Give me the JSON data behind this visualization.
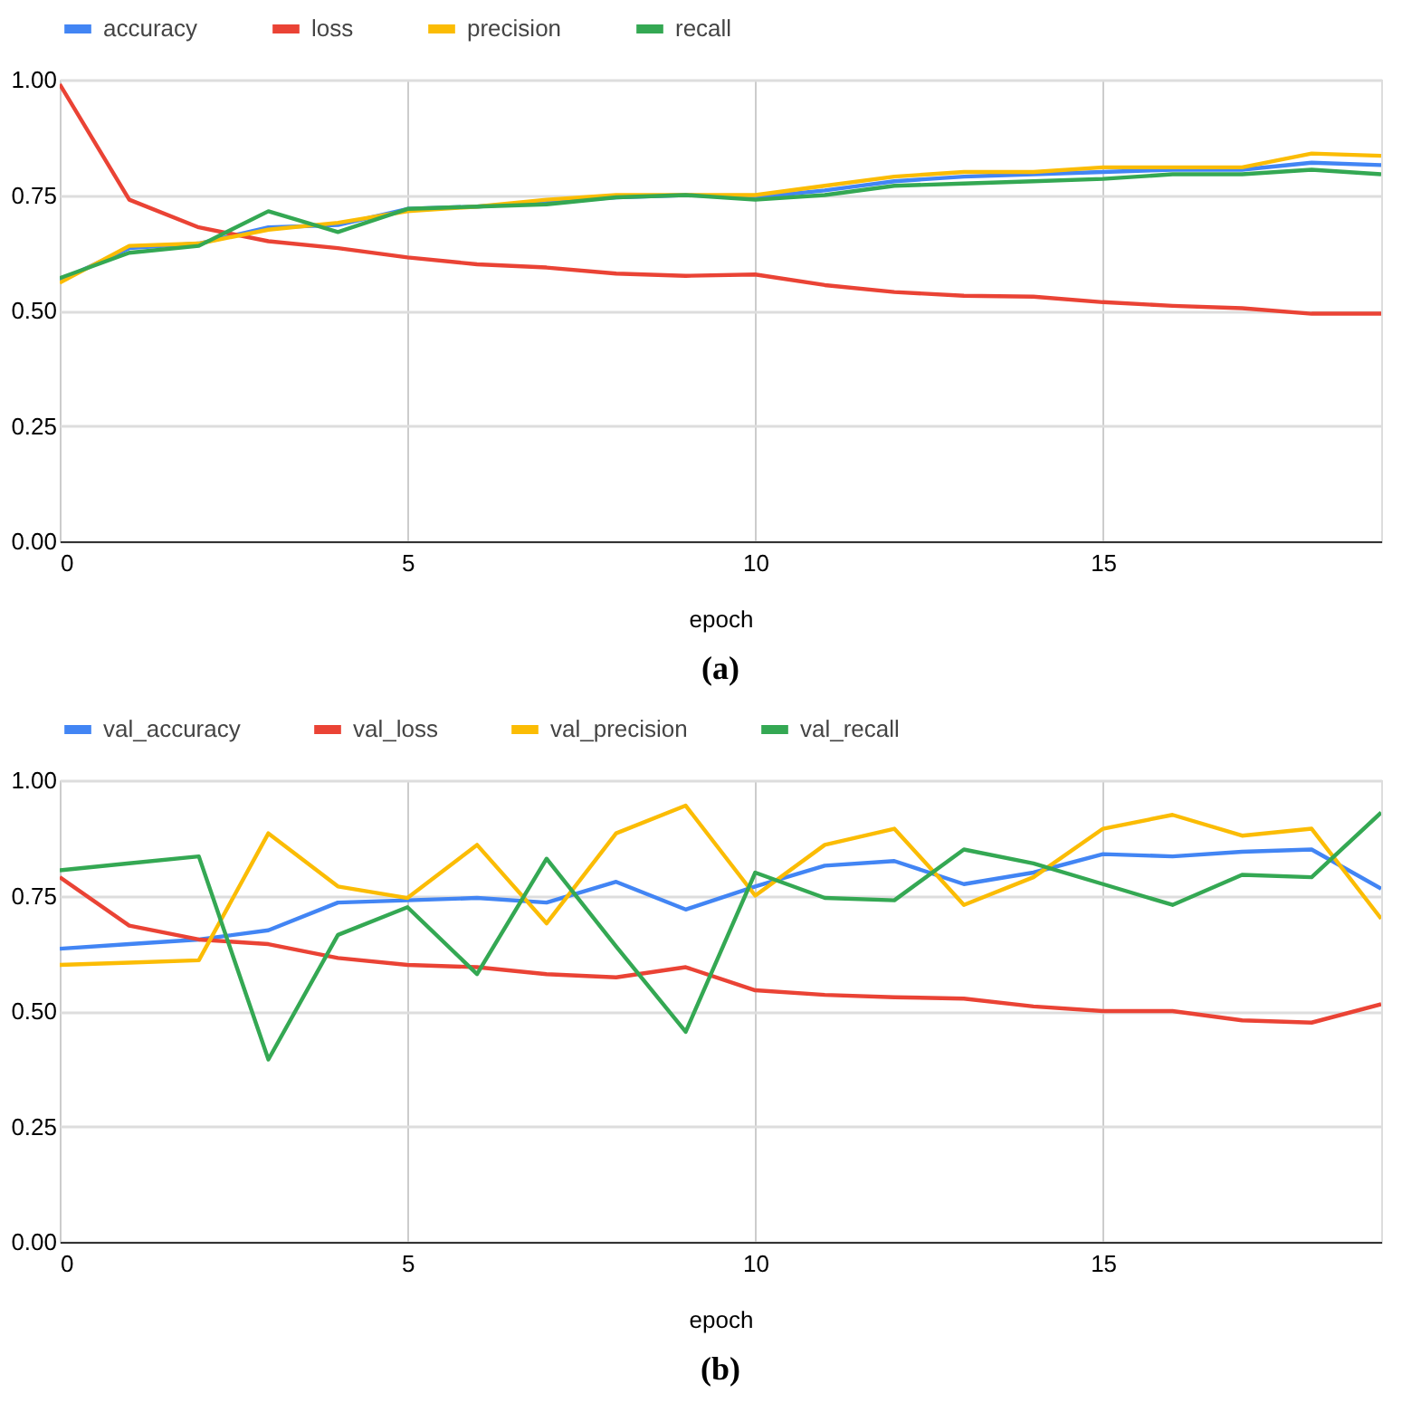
{
  "chart_data": [
    {
      "type": "line",
      "xlabel": "epoch",
      "x": [
        0,
        1,
        2,
        3,
        4,
        5,
        6,
        7,
        8,
        9,
        10,
        11,
        12,
        13,
        14,
        15,
        16,
        17,
        18,
        19
      ],
      "xlim": [
        0,
        19
      ],
      "xticks": [
        0,
        5,
        10,
        15
      ],
      "ylim": [
        0,
        1
      ],
      "yticks": [
        {
          "value": 0,
          "label": "0.00"
        },
        {
          "value": 0.25,
          "label": "0.25"
        },
        {
          "value": 0.5,
          "label": "0.50"
        },
        {
          "value": 0.75,
          "label": "0.75"
        },
        {
          "value": 1,
          "label": "1.00"
        }
      ],
      "grid": true,
      "legend": "top",
      "annotations": [
        "(a)"
      ],
      "series": [
        {
          "name": "accuracy",
          "color": "#4285f4",
          "values": [
            0.565,
            0.635,
            0.645,
            0.68,
            0.685,
            0.72,
            0.725,
            0.735,
            0.745,
            0.75,
            0.745,
            0.76,
            0.78,
            0.79,
            0.795,
            0.8,
            0.805,
            0.805,
            0.82,
            0.815
          ]
        },
        {
          "name": "loss",
          "color": "#ea4335",
          "values": [
            0.99,
            0.74,
            0.68,
            0.65,
            0.635,
            0.615,
            0.6,
            0.593,
            0.58,
            0.575,
            0.578,
            0.555,
            0.54,
            0.532,
            0.53,
            0.518,
            0.51,
            0.505,
            0.493,
            0.493
          ]
        },
        {
          "name": "precision",
          "color": "#fbbc04",
          "values": [
            0.56,
            0.64,
            0.645,
            0.675,
            0.69,
            0.715,
            0.725,
            0.74,
            0.75,
            0.75,
            0.75,
            0.77,
            0.79,
            0.8,
            0.8,
            0.81,
            0.81,
            0.81,
            0.84,
            0.835
          ]
        },
        {
          "name": "recall",
          "color": "#34a853",
          "values": [
            0.57,
            0.625,
            0.64,
            0.715,
            0.67,
            0.72,
            0.725,
            0.73,
            0.745,
            0.75,
            0.74,
            0.75,
            0.77,
            0.775,
            0.78,
            0.785,
            0.795,
            0.795,
            0.805,
            0.795
          ]
        }
      ]
    },
    {
      "type": "line",
      "xlabel": "epoch",
      "x": [
        0,
        1,
        2,
        3,
        4,
        5,
        6,
        7,
        8,
        9,
        10,
        11,
        12,
        13,
        14,
        15,
        16,
        17,
        18,
        19
      ],
      "xlim": [
        0,
        19
      ],
      "xticks": [
        0,
        5,
        10,
        15
      ],
      "ylim": [
        0,
        1
      ],
      "yticks": [
        {
          "value": 0,
          "label": "0.00"
        },
        {
          "value": 0.25,
          "label": "0.25"
        },
        {
          "value": 0.5,
          "label": "0.50"
        },
        {
          "value": 0.75,
          "label": "0.75"
        },
        {
          "value": 1,
          "label": "1.00"
        }
      ],
      "grid": true,
      "legend": "top",
      "annotations": [
        "(b)"
      ],
      "series": [
        {
          "name": "val_accuracy",
          "color": "#4285f4",
          "values": [
            0.635,
            0.645,
            0.655,
            0.675,
            0.735,
            0.74,
            0.745,
            0.735,
            0.78,
            0.72,
            0.77,
            0.815,
            0.825,
            0.775,
            0.8,
            0.84,
            0.835,
            0.845,
            0.85,
            0.765
          ]
        },
        {
          "name": "val_loss",
          "color": "#ea4335",
          "values": [
            0.79,
            0.685,
            0.655,
            0.645,
            0.615,
            0.6,
            0.595,
            0.58,
            0.573,
            0.595,
            0.545,
            0.535,
            0.53,
            0.527,
            0.51,
            0.5,
            0.5,
            0.48,
            0.475,
            0.515
          ]
        },
        {
          "name": "val_precision",
          "color": "#fbbc04",
          "values": [
            0.6,
            0.605,
            0.61,
            0.885,
            0.77,
            0.745,
            0.86,
            0.69,
            0.885,
            0.945,
            0.75,
            0.86,
            0.895,
            0.73,
            0.79,
            0.895,
            0.925,
            0.88,
            0.895,
            0.7
          ]
        },
        {
          "name": "val_recall",
          "color": "#34a853",
          "values": [
            0.805,
            0.82,
            0.835,
            0.395,
            0.665,
            0.725,
            0.58,
            0.83,
            0.64,
            0.455,
            0.8,
            0.745,
            0.74,
            0.85,
            0.82,
            0.775,
            0.73,
            0.795,
            0.79,
            0.93
          ]
        }
      ]
    }
  ]
}
